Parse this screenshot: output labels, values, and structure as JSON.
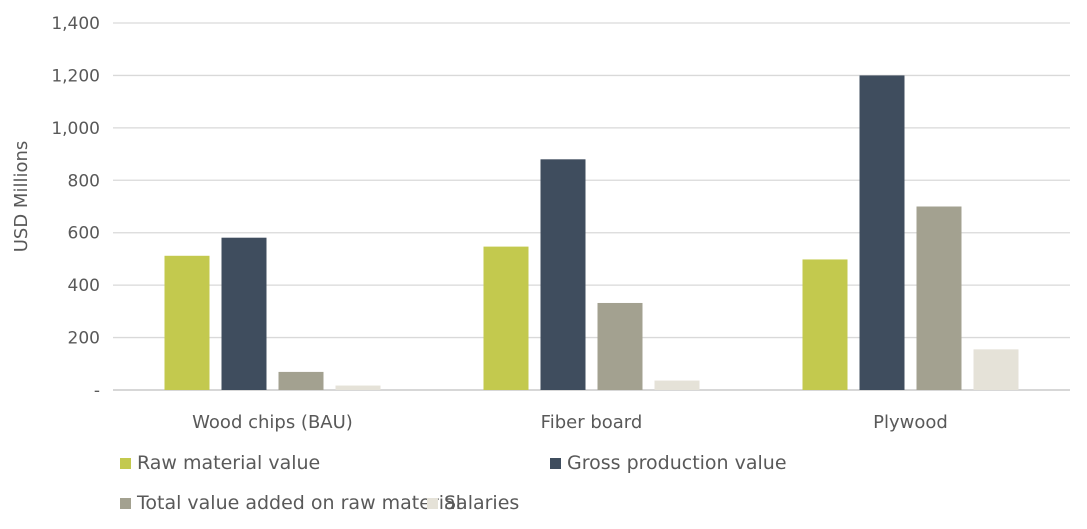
{
  "chart_data": {
    "type": "bar",
    "ylabel": "USD Millions",
    "ylim": [
      0,
      1400
    ],
    "yticks": [
      0,
      200,
      400,
      600,
      800,
      1000,
      1200,
      1400
    ],
    "ytick_labels": [
      "-",
      "200",
      "400",
      "600",
      "800",
      "1,000",
      "1,200",
      "1,400"
    ],
    "grid": true,
    "legend_position": "bottom",
    "categories": [
      "Wood chips (BAU)",
      "Fiber board",
      "Plywood"
    ],
    "series": [
      {
        "name": "Raw material value",
        "color": "#c3c94e",
        "values": [
          512,
          547,
          498
        ]
      },
      {
        "name": "Gross production value",
        "color": "#3f4d5e",
        "values": [
          581,
          880,
          1200
        ]
      },
      {
        "name": "Total value added on raw material",
        "color": "#a3a190",
        "values": [
          69,
          332,
          700
        ]
      },
      {
        "name": "Salaries",
        "color": "#e5e2d8",
        "values": [
          17,
          36,
          155
        ]
      }
    ]
  }
}
